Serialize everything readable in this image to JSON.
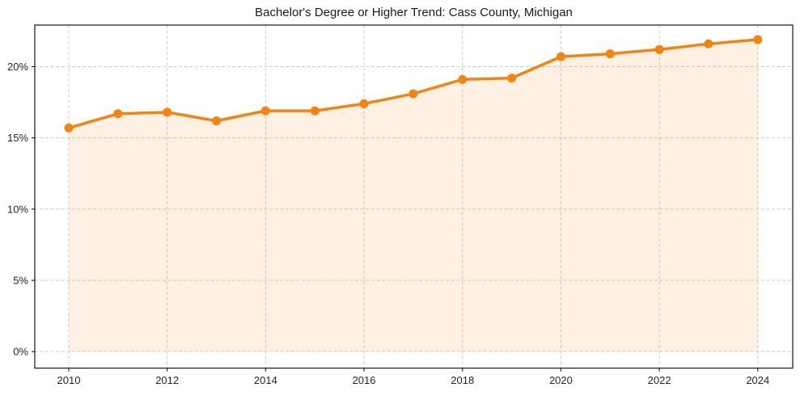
{
  "chart_data": {
    "type": "area",
    "title": "Bachelor's Degree or Higher Trend: Cass County, Michigan",
    "x": [
      2010,
      2011,
      2012,
      2013,
      2014,
      2015,
      2016,
      2017,
      2018,
      2019,
      2020,
      2021,
      2022,
      2023,
      2024
    ],
    "values": [
      15.7,
      16.7,
      16.8,
      16.2,
      16.9,
      16.9,
      17.4,
      18.1,
      19.1,
      19.2,
      20.7,
      20.9,
      21.2,
      21.6,
      21.9
    ],
    "xticks": [
      2010,
      2012,
      2014,
      2016,
      2018,
      2020,
      2022,
      2024
    ],
    "xtick_labels": [
      "2010",
      "2012",
      "2014",
      "2016",
      "2018",
      "2020",
      "2022",
      "2024"
    ],
    "ytick_values": [
      0,
      5,
      10,
      15,
      20
    ],
    "ytick_labels": [
      "0%",
      "5%",
      "10%",
      "15%",
      "20%"
    ],
    "xlim": [
      2009.31,
      2024.71
    ],
    "ylim": [
      -1.16,
      22.92
    ],
    "grid": true,
    "legend": "none",
    "line_color": "#f5830f",
    "marker_color": "#f5830f",
    "fill_color": "#f5830f",
    "fill_opacity": 0.12,
    "grid_color": "#cdcdcd",
    "spine_color": "#262626",
    "tick_label_color": "#262626",
    "title_color": "#1a1a1a",
    "background_color": "#ffffff"
  }
}
